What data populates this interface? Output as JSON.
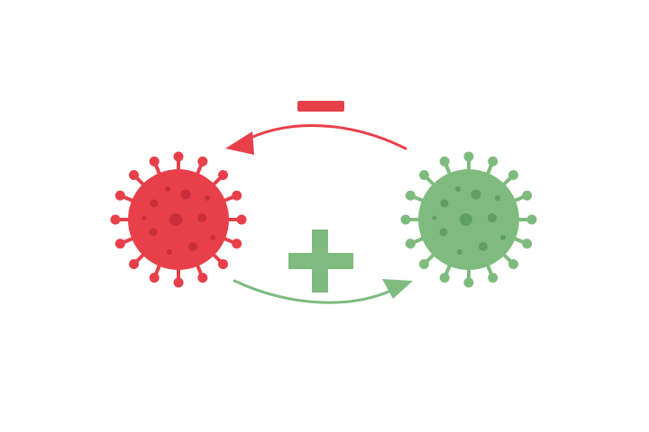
{
  "diagram": {
    "colors": {
      "negative": "#e8404a",
      "negative_dark": "#c92f3a",
      "positive": "#7fbb7e",
      "positive_dark": "#5fa061",
      "background": "#ffffff"
    },
    "nodes": [
      {
        "id": "virus-red",
        "icon": "virus-icon",
        "polarity": "negative"
      },
      {
        "id": "virus-green",
        "icon": "virus-icon",
        "polarity": "positive"
      }
    ],
    "edges": [
      {
        "from": "virus-green",
        "to": "virus-red",
        "sign": "minus",
        "symbol": "minus-sign-icon"
      },
      {
        "from": "virus-red",
        "to": "virus-green",
        "sign": "plus",
        "symbol": "plus-sign-icon"
      }
    ]
  }
}
